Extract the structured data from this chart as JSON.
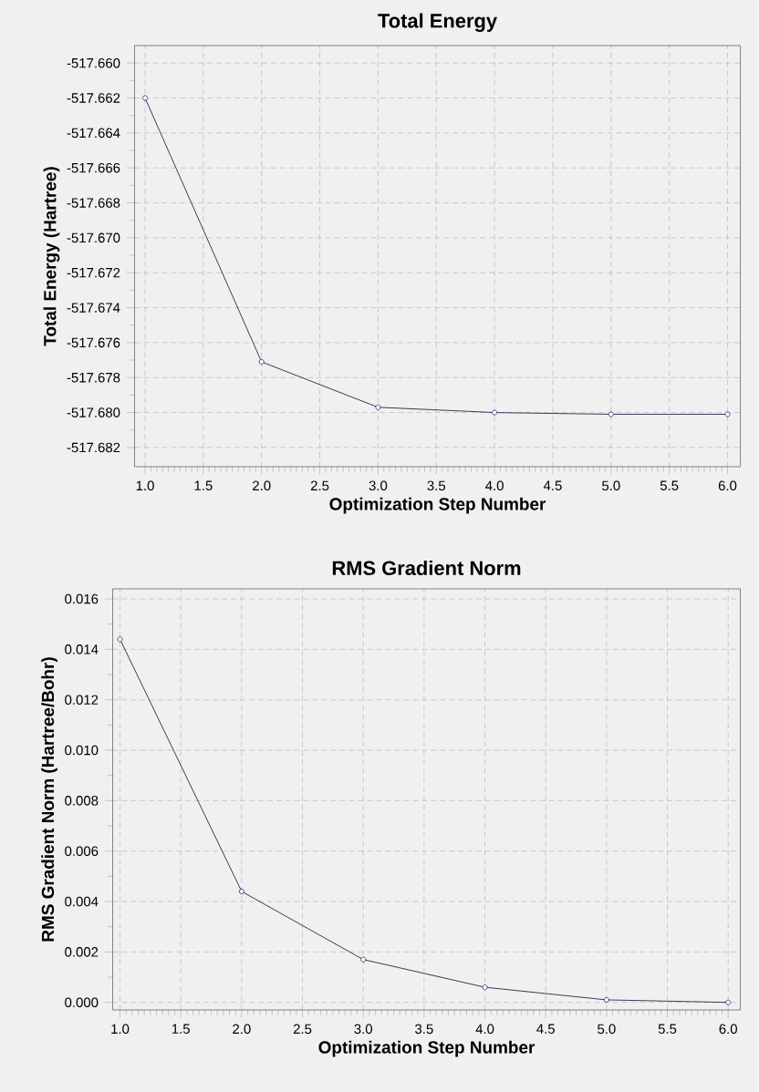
{
  "chart_data": [
    {
      "type": "line",
      "title": "Total Energy",
      "xlabel": "Optimization Step Number",
      "ylabel": "Total Energy (Hartree)",
      "x": [
        1,
        2,
        3,
        4,
        5,
        6
      ],
      "series": [
        {
          "color": "#1f1f7a",
          "values": [
            -517.662,
            -517.6771,
            -517.6797,
            -517.68,
            -517.6801,
            -517.6801
          ]
        }
      ],
      "xlim": [
        0.91,
        6.11
      ],
      "ylim": [
        -517.6831,
        -517.659
      ],
      "xticks": [
        {
          "value": 1,
          "label": "1.0"
        },
        1.5,
        {
          "value": 2,
          "label": "2.0"
        },
        2.5,
        {
          "value": 3,
          "label": "3.0"
        },
        3.5,
        {
          "value": 4,
          "label": "4.0"
        },
        4.5,
        {
          "value": 5,
          "label": "5.0"
        },
        5.5,
        {
          "value": 6,
          "label": "6.0"
        }
      ],
      "yticks": [
        {
          "value": -517.66,
          "label": "-517.660"
        },
        -517.662,
        -517.664,
        -517.666,
        -517.668,
        {
          "value": -517.67,
          "label": "-517.670"
        },
        -517.672,
        -517.674,
        -517.676,
        -517.678,
        {
          "value": -517.68,
          "label": "-517.680"
        },
        -517.682
      ],
      "grid": true,
      "marker": "circle",
      "line_style": "solid"
    },
    {
      "type": "line",
      "title": "RMS Gradient Norm",
      "xlabel": "Optimization Step Number",
      "ylabel": "RMS Gradient Norm (Hartree/Bohr)",
      "x": [
        1,
        2,
        3,
        4,
        5,
        6
      ],
      "series": [
        {
          "color": "#1f1f7a",
          "values": [
            0.0144,
            0.0044,
            0.0017,
            0.0006,
            0.0001,
            0.0
          ]
        }
      ],
      "xlim": [
        0.94,
        6.1
      ],
      "ylim": [
        -0.0003,
        0.0164
      ],
      "xticks": [
        {
          "value": 1,
          "label": "1.0"
        },
        1.5,
        {
          "value": 2,
          "label": "2.0"
        },
        2.5,
        {
          "value": 3,
          "label": "3.0"
        },
        3.5,
        {
          "value": 4,
          "label": "4.0"
        },
        4.5,
        {
          "value": 5,
          "label": "5.0"
        },
        5.5,
        {
          "value": 6,
          "label": "6.0"
        }
      ],
      "yticks": [
        {
          "value": 0,
          "label": "0.000"
        },
        {
          "value": 0.002,
          "label": "0.002"
        },
        {
          "value": 0.004,
          "label": "0.004"
        },
        {
          "value": 0.006,
          "label": "0.006"
        },
        {
          "value": 0.008,
          "label": "0.008"
        },
        {
          "value": 0.01,
          "label": "0.010"
        },
        {
          "value": 0.012,
          "label": "0.012"
        },
        {
          "value": 0.014,
          "label": "0.014"
        },
        {
          "value": 0.016,
          "label": "0.016"
        }
      ],
      "grid": true,
      "marker": "circle",
      "line_style": "solid"
    }
  ]
}
